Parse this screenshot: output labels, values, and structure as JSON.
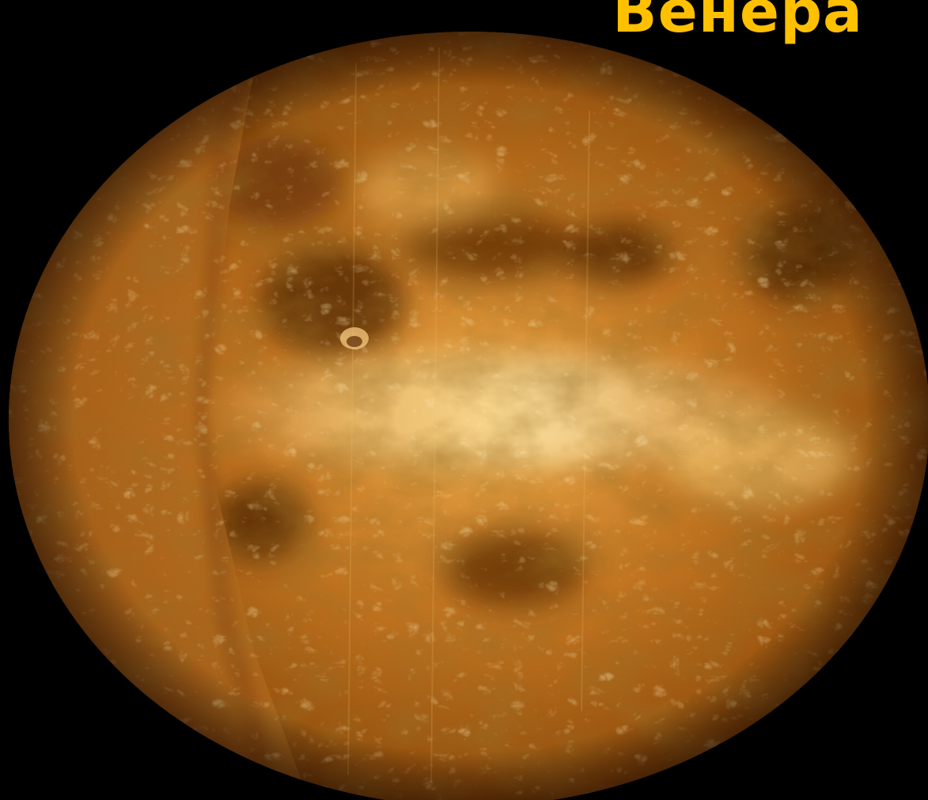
{
  "slide": {
    "title": "Венера",
    "title_color": "#FFC000",
    "background": "#000000"
  },
  "image": {
    "subject": "planet",
    "palette": [
      "#3a1a02",
      "#7a3e0a",
      "#b8681a",
      "#e3a03c",
      "#f7d27a"
    ]
  }
}
